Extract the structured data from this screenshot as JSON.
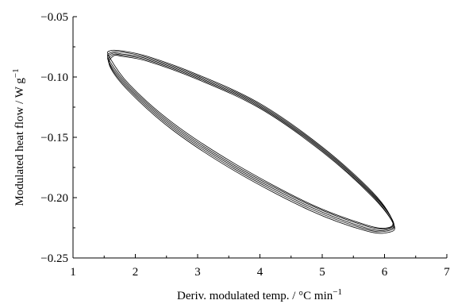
{
  "chart_data": {
    "type": "line",
    "xlabel": "Deriv. modulated temp. / °C min",
    "xlabel_sup": "−1",
    "ylabel": "Modulated heat flow / W g",
    "ylabel_sup": "−1",
    "xlim": [
      1,
      7
    ],
    "ylim": [
      -0.25,
      -0.05
    ],
    "xticks": [
      1,
      2,
      3,
      4,
      5,
      6,
      7
    ],
    "xtick_labels": [
      "1",
      "2",
      "3",
      "4",
      "5",
      "6",
      "7"
    ],
    "yticks": [
      -0.05,
      -0.1,
      -0.15,
      -0.2,
      -0.25
    ],
    "ytick_labels": [
      "−0.05",
      "−0.10",
      "−0.15",
      "−0.20",
      "−0.25"
    ],
    "grid": false,
    "line_color": "#000000",
    "series": [
      {
        "values": [
          [
            1.58,
            -0.083
          ],
          [
            1.6,
            -0.0782
          ],
          [
            1.8,
            -0.0785
          ],
          [
            2.2,
            -0.083
          ],
          [
            3.0,
            -0.098
          ],
          [
            4.0,
            -0.122
          ],
          [
            5.0,
            -0.158
          ],
          [
            5.8,
            -0.195
          ],
          [
            6.12,
            -0.218
          ],
          [
            6.05,
            -0.225
          ],
          [
            5.7,
            -0.2225
          ],
          [
            4.8,
            -0.205
          ],
          [
            3.6,
            -0.172
          ],
          [
            2.6,
            -0.138
          ],
          [
            1.9,
            -0.106
          ],
          [
            1.58,
            -0.083
          ]
        ]
      },
      {
        "values": [
          [
            1.57,
            -0.085
          ],
          [
            1.62,
            -0.0795
          ],
          [
            1.8,
            -0.0795
          ],
          [
            2.2,
            -0.084
          ],
          [
            3.0,
            -0.099
          ],
          [
            4.0,
            -0.123
          ],
          [
            5.0,
            -0.159
          ],
          [
            5.8,
            -0.196
          ],
          [
            6.13,
            -0.219
          ],
          [
            6.05,
            -0.2255
          ],
          [
            5.7,
            -0.2235
          ],
          [
            4.8,
            -0.206
          ],
          [
            3.6,
            -0.1735
          ],
          [
            2.6,
            -0.1395
          ],
          [
            1.9,
            -0.1075
          ],
          [
            1.57,
            -0.085
          ]
        ]
      },
      {
        "values": [
          [
            1.57,
            -0.087
          ],
          [
            1.63,
            -0.0805
          ],
          [
            1.8,
            -0.081
          ],
          [
            2.2,
            -0.085
          ],
          [
            3.0,
            -0.1
          ],
          [
            4.0,
            -0.124
          ],
          [
            5.0,
            -0.16
          ],
          [
            5.8,
            -0.197
          ],
          [
            6.14,
            -0.22
          ],
          [
            6.05,
            -0.2265
          ],
          [
            5.7,
            -0.225
          ],
          [
            4.8,
            -0.2075
          ],
          [
            3.6,
            -0.175
          ],
          [
            2.6,
            -0.141
          ],
          [
            1.9,
            -0.109
          ],
          [
            1.57,
            -0.087
          ]
        ]
      },
      {
        "values": [
          [
            1.58,
            -0.089
          ],
          [
            1.64,
            -0.0815
          ],
          [
            1.8,
            -0.082
          ],
          [
            2.2,
            -0.086
          ],
          [
            3.0,
            -0.101
          ],
          [
            4.0,
            -0.125
          ],
          [
            5.0,
            -0.161
          ],
          [
            5.8,
            -0.198
          ],
          [
            6.14,
            -0.2215
          ],
          [
            6.05,
            -0.2275
          ],
          [
            5.7,
            -0.2262
          ],
          [
            4.8,
            -0.209
          ],
          [
            3.6,
            -0.1765
          ],
          [
            2.6,
            -0.1425
          ],
          [
            1.9,
            -0.1105
          ],
          [
            1.58,
            -0.089
          ]
        ]
      },
      {
        "values": [
          [
            1.59,
            -0.091
          ],
          [
            1.65,
            -0.0825
          ],
          [
            1.8,
            -0.083
          ],
          [
            2.2,
            -0.087
          ],
          [
            3.0,
            -0.102
          ],
          [
            4.0,
            -0.126
          ],
          [
            5.0,
            -0.162
          ],
          [
            5.8,
            -0.199
          ],
          [
            6.15,
            -0.2225
          ],
          [
            6.06,
            -0.2288
          ],
          [
            5.7,
            -0.2275
          ],
          [
            4.8,
            -0.2105
          ],
          [
            3.6,
            -0.178
          ],
          [
            2.6,
            -0.144
          ],
          [
            1.9,
            -0.112
          ],
          [
            1.59,
            -0.091
          ]
        ]
      }
    ]
  }
}
